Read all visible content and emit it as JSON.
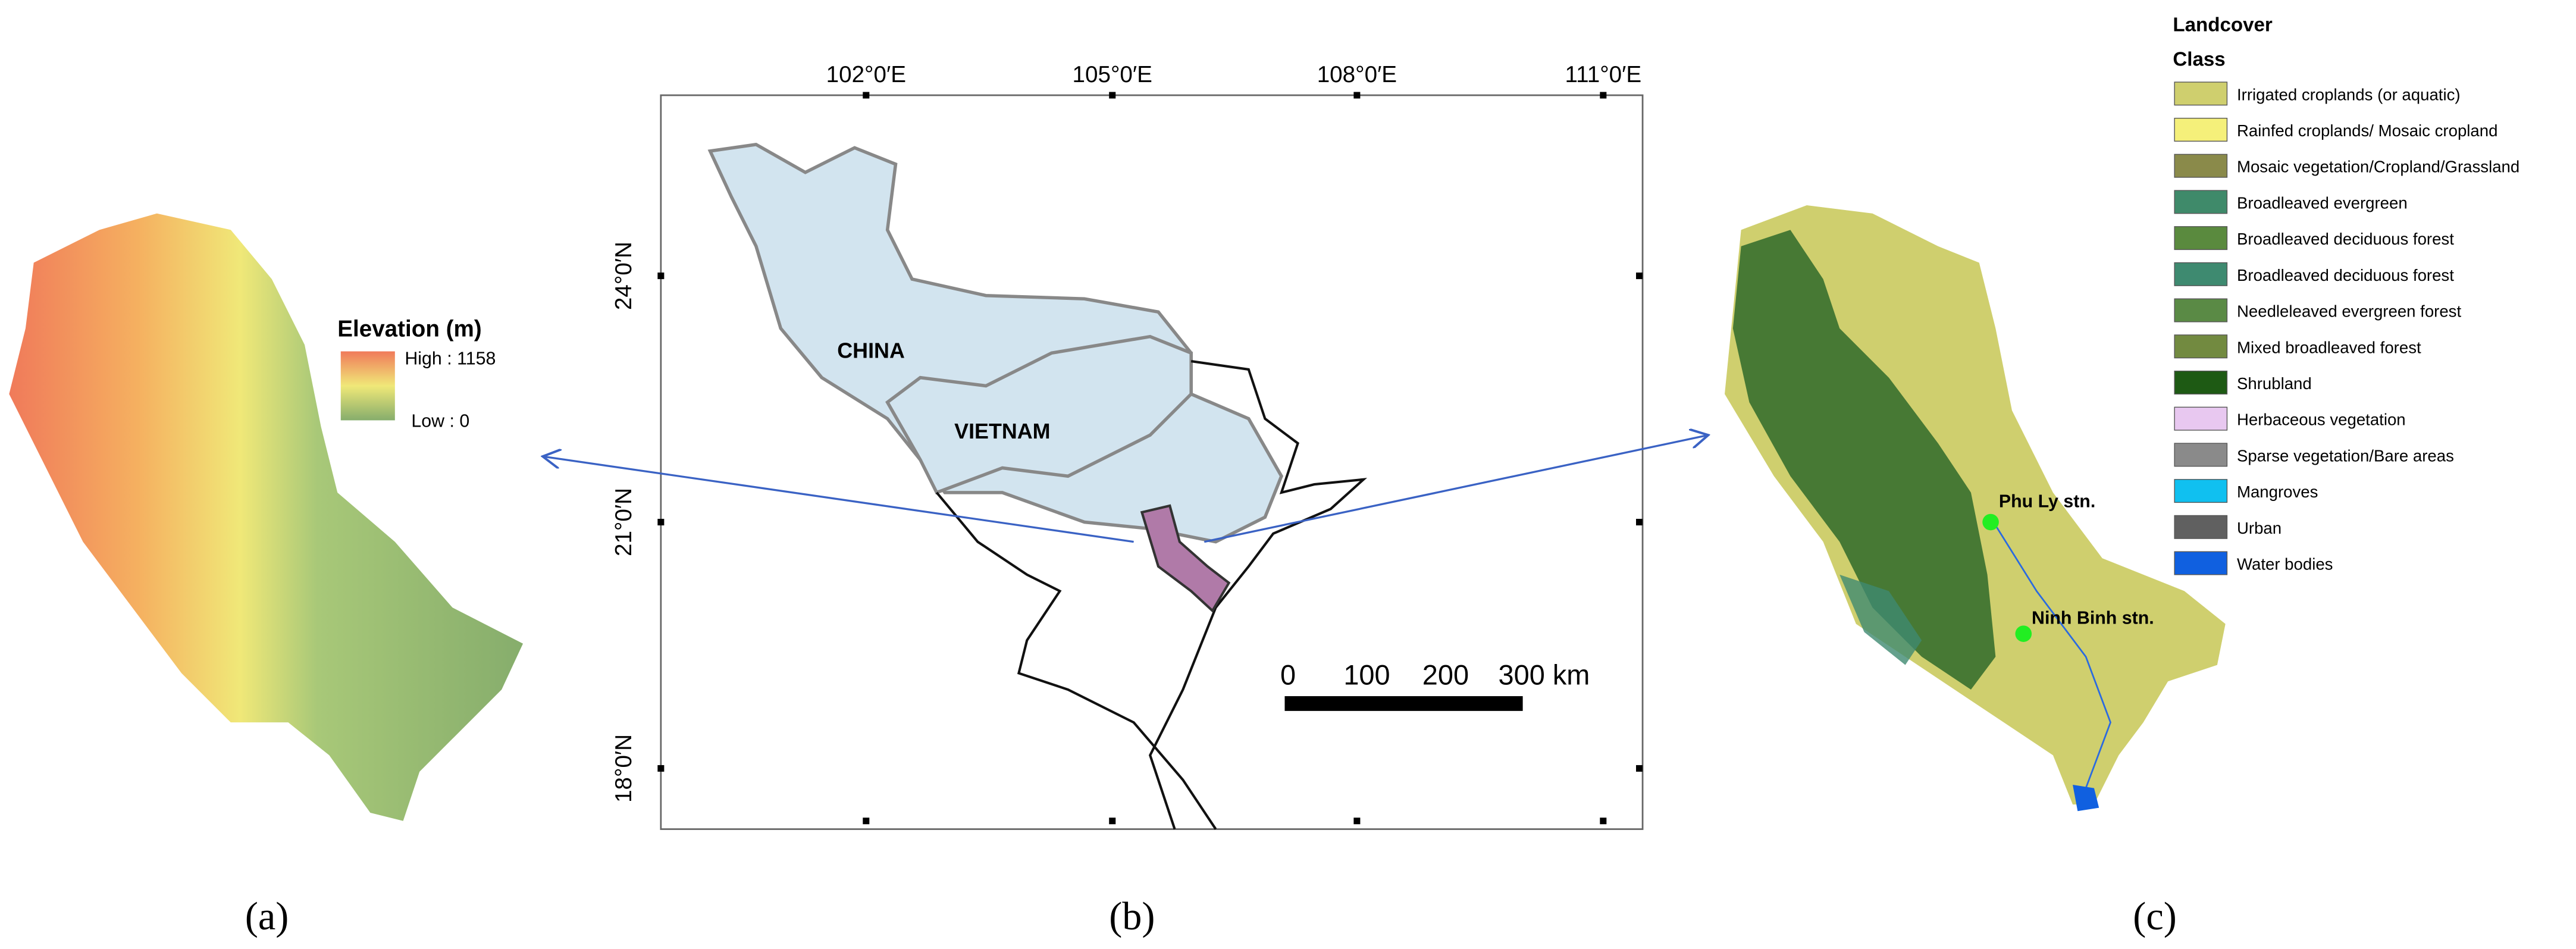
{
  "panel_a": {
    "legend_title": "Elevation (m)",
    "high": "High : 1158",
    "low": "Low : 0",
    "label": "(a)"
  },
  "panel_b": {
    "x_labels": [
      "102°0′E",
      "105°0′E",
      "108°0′E",
      "111°0′E"
    ],
    "y_labels": [
      "24°0′N",
      "21°0′N",
      "18°0′N"
    ],
    "country_labels": [
      "CHINA",
      "VIETNAM"
    ],
    "scale_labels": [
      "0",
      "100",
      "200",
      "300 km"
    ],
    "label": "(b)"
  },
  "panel_c": {
    "legend_title": "Landcover",
    "legend_subtitle": "Class",
    "classes": [
      {
        "name": "Irrigated croplands (or aquatic)",
        "color": "#cfcf6e"
      },
      {
        "name": "Rainfed croplands/ Mosaic cropland",
        "color": "#f5f07a"
      },
      {
        "name": "Mosaic vegetation/Cropland/Grassland",
        "color": "#8a8a4a"
      },
      {
        "name": "Broadleaved evergreen",
        "color": "#3f8a6a"
      },
      {
        "name": "Broadleaved deciduous forest",
        "color": "#5a8a3e"
      },
      {
        "name": "Broadleaved deciduous forest",
        "color": "#3e8a70"
      },
      {
        "name": "Needleleaved evergreen forest",
        "color": "#5a8a45"
      },
      {
        "name": "Mixed broadleaved forest",
        "color": "#728a40"
      },
      {
        "name": "Shrubland",
        "color": "#1e5a14"
      },
      {
        "name": "Herbaceous vegetation",
        "color": "#e8c8f0"
      },
      {
        "name": "Sparse vegetation/Bare areas",
        "color": "#8a8a8a"
      },
      {
        "name": "Mangroves",
        "color": "#10c0f0"
      },
      {
        "name": "Urban",
        "color": "#606060"
      },
      {
        "name": "Water bodies",
        "color": "#1060e0"
      }
    ],
    "stations": [
      "Phu Ly stn.",
      "Ninh Binh stn."
    ],
    "label": "(c)"
  }
}
